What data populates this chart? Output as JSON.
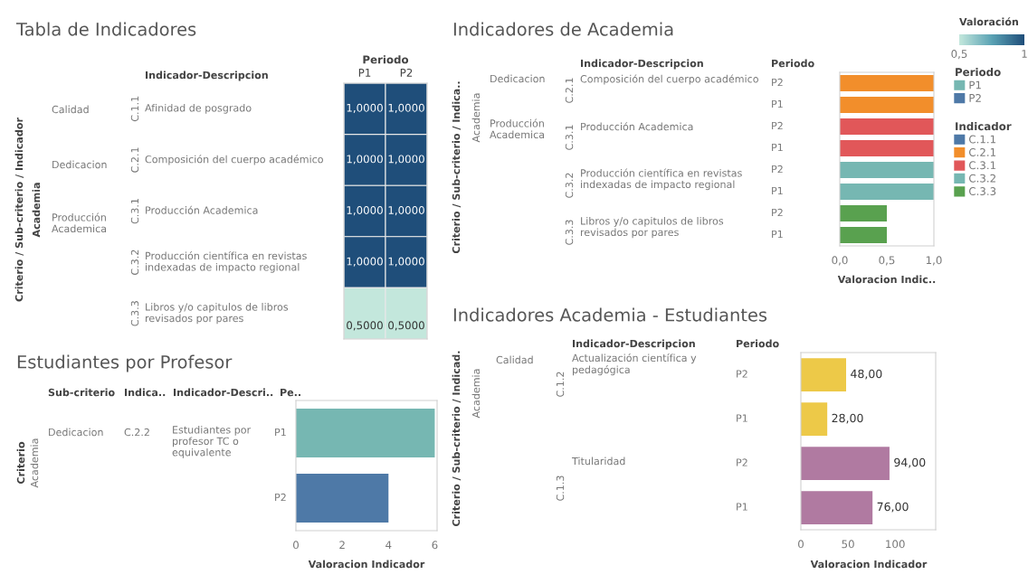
{
  "chart_data": [
    {
      "type": "heatmap",
      "title": "Tabla de Indicadores",
      "ylabel": "Criterio / Sub-criterio / Indicador",
      "xlabel": "Periodo",
      "clabel": "Valoración",
      "categories": [
        "P1",
        "P2"
      ],
      "y_categories": [
        "Afinidad de posgrado",
        "Composición del cuerpo académico",
        "Producción Academica",
        "Producción científica en revistas indexadas de impacto regional",
        "Libros y/o capitulos de libros revisados por pares"
      ],
      "y2_categories": [
        "C.1.1",
        "C.2.1",
        "C.3.1",
        "C.3.2",
        "C.3.3"
      ],
      "cells": [
        [
          1,
          1
        ],
        [
          1,
          1
        ],
        [
          1,
          1
        ],
        [
          1,
          1
        ],
        [
          0.5,
          0.5
        ]
      ],
      "cell_labels": [
        [
          "1,0000",
          "1,0000"
        ],
        [
          "1,0000",
          "1,0000"
        ],
        [
          "1,0000",
          "1,0000"
        ],
        [
          "1,0000",
          "1,0000"
        ],
        [
          "0,5000",
          "0,5000"
        ]
      ],
      "clim": [
        0.5,
        1
      ],
      "cticks": [
        {
          "value": 0.5,
          "label": "0,5"
        },
        1
      ],
      "annotations": [
        "Academia",
        "Indicador-Descripcion",
        "Calidad",
        "Dedicacion",
        "Producción Academica"
      ]
    },
    {
      "type": "bar",
      "orientation": "horizontal",
      "title": "Indicadores de Academia",
      "ylabel": "Criterio / Sub-criterio / Indica..",
      "xlabel": "Valoracion Indic..",
      "legend": "right",
      "legend_title": "Indicador",
      "categories": [
        "P2",
        "P1",
        "P2",
        "P1",
        "P2",
        "P1",
        "P2",
        "P1"
      ],
      "series": [
        {
          "name": "C.1.1",
          "color": "#4e79a7",
          "values": [
            null,
            null,
            null,
            null,
            null,
            null,
            null,
            null
          ]
        },
        {
          "name": "C.2.1",
          "color": "#f28e2b",
          "values": [
            1,
            1,
            null,
            null,
            null,
            null,
            null,
            null
          ]
        },
        {
          "name": "C.3.1",
          "color": "#e15759",
          "values": [
            null,
            null,
            1,
            1,
            null,
            null,
            null,
            null
          ]
        },
        {
          "name": "C.3.2",
          "color": "#76b7b2",
          "values": [
            null,
            null,
            null,
            null,
            1,
            1,
            null,
            null
          ]
        },
        {
          "name": "C.3.3",
          "color": "#59a14f",
          "values": [
            null,
            null,
            null,
            null,
            null,
            null,
            0.5,
            0.5
          ]
        }
      ],
      "xlim": [
        0,
        1
      ],
      "xticks": [
        {
          "value": 0,
          "label": "0,0"
        },
        {
          "value": 0.5,
          "label": "0,5"
        },
        {
          "value": 1,
          "label": "1,0"
        }
      ],
      "annotations": [
        "Academia",
        "Indicador-Descripcion",
        "Periodo",
        "Dedicacion",
        "Producción Academica",
        "C.2.1",
        "Composición del cuerpo académico",
        "C.3.1",
        "Producción Academica",
        "C.3.2",
        "Producción científica en revistas indexadas de impacto regional",
        "C.3.3",
        "Libros y/o capitulos de libros revisados por pares"
      ]
    },
    {
      "type": "bar",
      "orientation": "horizontal",
      "title": "Estudiantes por Profesor",
      "ylabel": "Criterio",
      "xlabel": "Valoracion Indicador",
      "legend": "right",
      "legend_title": "Periodo",
      "categories": [
        "P1",
        "P2"
      ],
      "series": [
        {
          "name": "P1",
          "color": "#76b7b2",
          "values": [
            6,
            null
          ]
        },
        {
          "name": "P2",
          "color": "#4e79a7",
          "values": [
            null,
            4
          ]
        }
      ],
      "xlim": [
        0,
        6.1
      ],
      "xticks": [
        0,
        2,
        4,
        6
      ],
      "annotations": [
        "Academia",
        "Sub-criterio",
        "Indica..",
        "Indicador-Descri..",
        "Pe..",
        "Dedicacion",
        "C.2.2",
        "Estudiantes por profesor TC o equivalente"
      ]
    },
    {
      "type": "bar",
      "orientation": "horizontal",
      "title": "Indicadores Academia - Estudiantes",
      "ylabel": "Criterio / Sub-criterio / Indicad.",
      "xlabel": "Valoracion Indicador",
      "categories": [
        "P2",
        "P1",
        "P2",
        "P1"
      ],
      "values": [
        48,
        28,
        94,
        76
      ],
      "colors": [
        "#edc948",
        "#edc948",
        "#b07aa1",
        "#b07aa1"
      ],
      "value_labels": [
        "48,00",
        "28,00",
        "94,00",
        "76,00"
      ],
      "xlim": [
        0,
        143
      ],
      "xticks": [
        0,
        50,
        100
      ],
      "annotations": [
        "Academia",
        "Indicador-Descripcion",
        "Periodo",
        "Calidad",
        "C.1.2",
        "Actualización científica y pedagógica",
        "C.1.3",
        "Titularidad"
      ]
    }
  ]
}
